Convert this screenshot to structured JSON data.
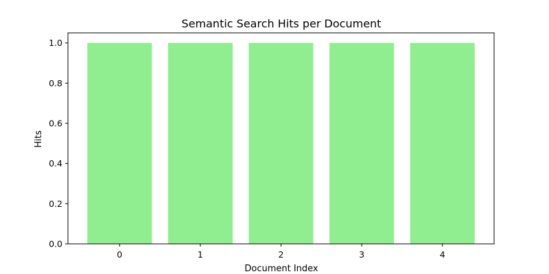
{
  "chart_data": {
    "type": "bar",
    "title": "Semantic Search Hits per Document",
    "xlabel": "Document Index",
    "ylabel": "Hits",
    "categories": [
      "0",
      "1",
      "2",
      "3",
      "4"
    ],
    "values": [
      1,
      1,
      1,
      1,
      1
    ],
    "ylim": [
      0,
      1.05
    ],
    "yticks": [
      0.0,
      0.2,
      0.4,
      0.6,
      0.8,
      1.0
    ],
    "ytick_labels": [
      "0.0",
      "0.2",
      "0.4",
      "0.6",
      "0.8",
      "1.0"
    ],
    "bar_color": "#90ee90",
    "grid": false,
    "legend": "none"
  }
}
